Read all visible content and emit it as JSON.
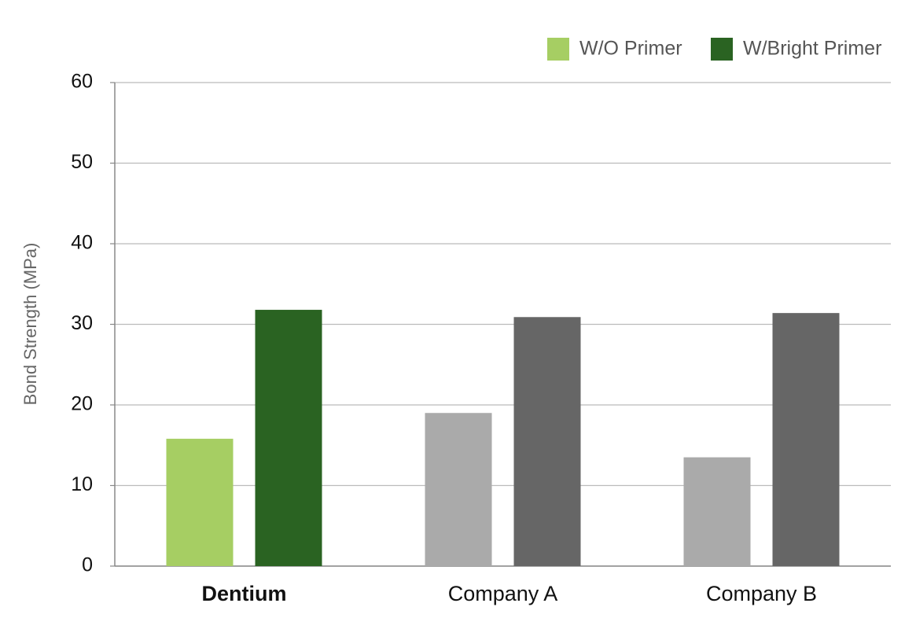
{
  "chart_data": {
    "type": "bar",
    "y_label": "Bond Strength (MPa)",
    "categories": [
      "Dentium",
      "Company A",
      "Company B"
    ],
    "category_font_weights": [
      "bold",
      "normal",
      "normal"
    ],
    "series": [
      {
        "name": "W/O Primer",
        "color": "#a6ce63",
        "colors": [
          "#a6ce63",
          "#aaaaaa",
          "#aaaaaa"
        ],
        "values": [
          15.8,
          19.0,
          13.5
        ]
      },
      {
        "name": "W/Bright Primer",
        "color": "#2a6322",
        "colors": [
          "#2a6322",
          "#666666",
          "#666666"
        ],
        "values": [
          31.8,
          30.9,
          31.4
        ]
      }
    ],
    "ylim": [
      0,
      60
    ],
    "yticks": [
      0,
      10,
      20,
      30,
      40,
      50,
      60
    ],
    "grid": true,
    "legend": "top-right"
  }
}
